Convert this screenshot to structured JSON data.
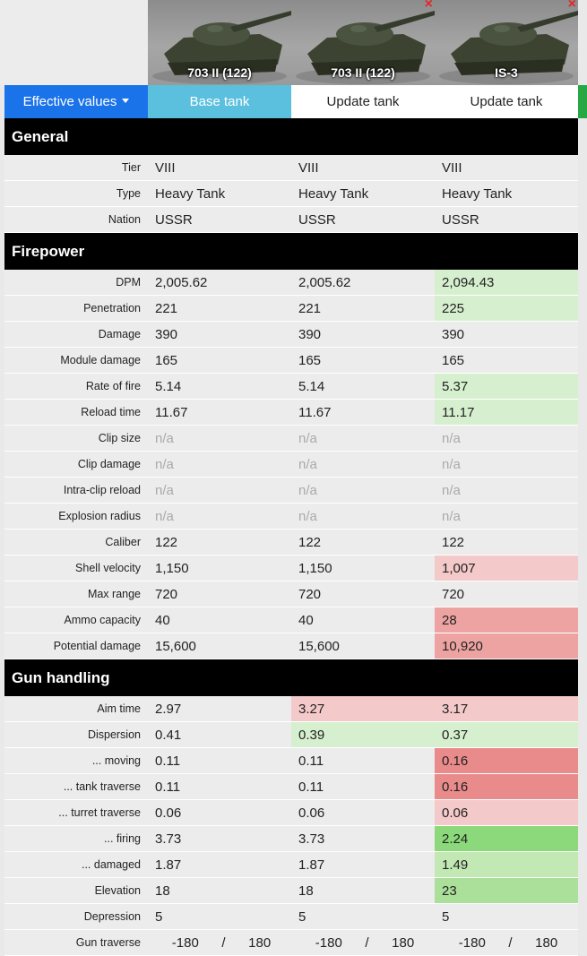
{
  "tanks": [
    {
      "name": "703 II (122)",
      "closable": false
    },
    {
      "name": "703 II (122)",
      "closable": true
    },
    {
      "name": "IS-3",
      "closable": true
    }
  ],
  "close_glyph": "×",
  "buttons": {
    "effective": "Effective values",
    "base": "Base tank",
    "update1": "Update tank",
    "update2": "Update tank"
  },
  "sections": [
    {
      "title": "General",
      "rows": [
        {
          "label": "Tier",
          "values": [
            "VIII",
            "VIII",
            "VIII"
          ],
          "shades": [
            "",
            "",
            ""
          ]
        },
        {
          "label": "Type",
          "values": [
            "Heavy Tank",
            "Heavy Tank",
            "Heavy Tank"
          ],
          "shades": [
            "",
            "",
            ""
          ]
        },
        {
          "label": "Nation",
          "values": [
            "USSR",
            "USSR",
            "USSR"
          ],
          "shades": [
            "",
            "",
            ""
          ]
        }
      ]
    },
    {
      "title": "Firepower",
      "rows": [
        {
          "label": "DPM",
          "values": [
            "2,005.62",
            "2,005.62",
            "2,094.43"
          ],
          "shades": [
            "",
            "",
            "g1"
          ]
        },
        {
          "label": "Penetration",
          "values": [
            "221",
            "221",
            "225"
          ],
          "shades": [
            "",
            "",
            "g1"
          ]
        },
        {
          "label": "Damage",
          "values": [
            "390",
            "390",
            "390"
          ],
          "shades": [
            "",
            "",
            ""
          ]
        },
        {
          "label": "Module damage",
          "values": [
            "165",
            "165",
            "165"
          ],
          "shades": [
            "",
            "",
            ""
          ]
        },
        {
          "label": "Rate of fire",
          "values": [
            "5.14",
            "5.14",
            "5.37"
          ],
          "shades": [
            "",
            "",
            "g1"
          ]
        },
        {
          "label": "Reload time",
          "values": [
            "11.67",
            "11.67",
            "11.17"
          ],
          "shades": [
            "",
            "",
            "g1"
          ]
        },
        {
          "label": "Clip size",
          "values": [
            "n/a",
            "n/a",
            "n/a"
          ],
          "shades": [
            "na",
            "na",
            "na"
          ]
        },
        {
          "label": "Clip damage",
          "values": [
            "n/a",
            "n/a",
            "n/a"
          ],
          "shades": [
            "na",
            "na",
            "na"
          ]
        },
        {
          "label": "Intra-clip reload",
          "values": [
            "n/a",
            "n/a",
            "n/a"
          ],
          "shades": [
            "na",
            "na",
            "na"
          ]
        },
        {
          "label": "Explosion radius",
          "values": [
            "n/a",
            "n/a",
            "n/a"
          ],
          "shades": [
            "na",
            "na",
            "na"
          ]
        },
        {
          "label": "Caliber",
          "values": [
            "122",
            "122",
            "122"
          ],
          "shades": [
            "",
            "",
            ""
          ]
        },
        {
          "label": "Shell velocity",
          "values": [
            "1,150",
            "1,150",
            "1,007"
          ],
          "shades": [
            "",
            "",
            "r1"
          ]
        },
        {
          "label": "Max range",
          "values": [
            "720",
            "720",
            "720"
          ],
          "shades": [
            "",
            "",
            ""
          ]
        },
        {
          "label": "Ammo capacity",
          "values": [
            "40",
            "40",
            "28"
          ],
          "shades": [
            "",
            "",
            "r2"
          ]
        },
        {
          "label": "Potential damage",
          "values": [
            "15,600",
            "15,600",
            "10,920"
          ],
          "shades": [
            "",
            "",
            "r2"
          ]
        }
      ]
    },
    {
      "title": "Gun handling",
      "rows": [
        {
          "label": "Aim time",
          "values": [
            "2.97",
            "3.27",
            "3.17"
          ],
          "shades": [
            "",
            "r1",
            "r1"
          ]
        },
        {
          "label": "Dispersion",
          "values": [
            "0.41",
            "0.39",
            "0.37"
          ],
          "shades": [
            "",
            "g1",
            "g1"
          ]
        },
        {
          "label": "... moving",
          "values": [
            "0.11",
            "0.11",
            "0.16"
          ],
          "shades": [
            "",
            "",
            "r3"
          ]
        },
        {
          "label": "... tank traverse",
          "values": [
            "0.11",
            "0.11",
            "0.16"
          ],
          "shades": [
            "",
            "",
            "r3"
          ]
        },
        {
          "label": "... turret traverse",
          "values": [
            "0.06",
            "0.06",
            "0.06"
          ],
          "shades": [
            "",
            "",
            "r1"
          ]
        },
        {
          "label": "... firing",
          "values": [
            "3.73",
            "3.73",
            "2.24"
          ],
          "shades": [
            "",
            "",
            "g4"
          ]
        },
        {
          "label": "... damaged",
          "values": [
            "1.87",
            "1.87",
            "1.49"
          ],
          "shades": [
            "",
            "",
            "g2"
          ]
        },
        {
          "label": "Elevation",
          "values": [
            "18",
            "18",
            "23"
          ],
          "shades": [
            "",
            "",
            "g3"
          ]
        },
        {
          "label": "Depression",
          "values": [
            "5",
            "5",
            "5"
          ],
          "shades": [
            "",
            "",
            ""
          ]
        }
      ]
    }
  ],
  "gun_traverse": {
    "label": "Gun traverse",
    "values": [
      {
        "left": "-180",
        "sep": "/",
        "right": "180"
      },
      {
        "left": "-180",
        "sep": "/",
        "right": "180"
      },
      {
        "left": "-180",
        "sep": "/",
        "right": "180"
      }
    ]
  },
  "colors": {
    "primary": "#1a73e8",
    "info": "#5bc0de",
    "success": "#28a745",
    "close": "#e0282a",
    "better": "#c2e9b4",
    "worse": "#eea3a3"
  }
}
